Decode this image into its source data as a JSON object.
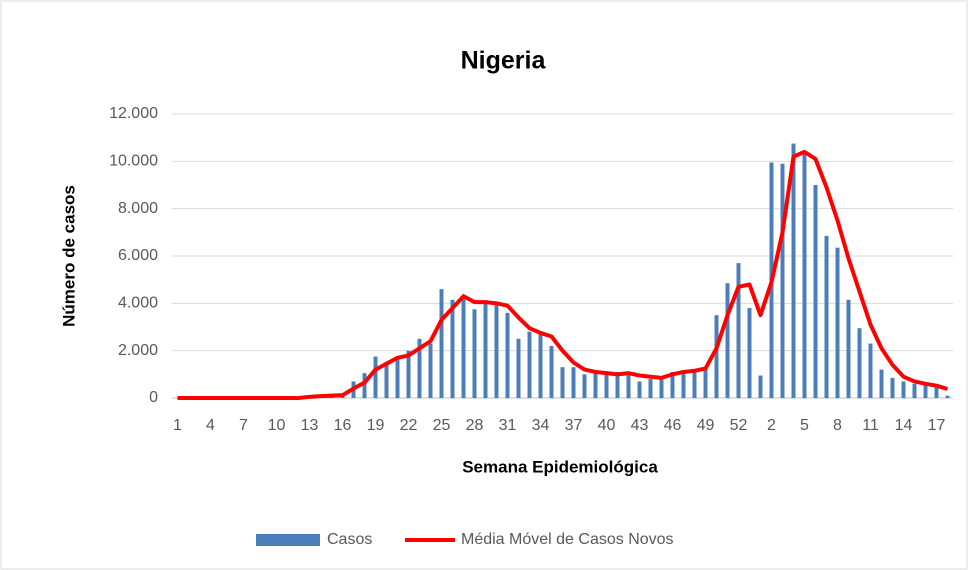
{
  "chart_data": {
    "type": "bar",
    "title": "Nigeria",
    "x_label": "Semana Epidemiológica",
    "y_label": "Número de casos",
    "categories": [
      "1",
      null,
      null,
      "4",
      null,
      null,
      "7",
      null,
      null,
      "10",
      null,
      null,
      "13",
      null,
      null,
      "16",
      null,
      null,
      "19",
      null,
      null,
      "22",
      null,
      null,
      "25",
      null,
      null,
      "28",
      null,
      null,
      "31",
      null,
      null,
      "34",
      null,
      null,
      "37",
      null,
      null,
      "40",
      null,
      null,
      "43",
      null,
      null,
      "46",
      null,
      null,
      "49",
      null,
      null,
      "52",
      null,
      null,
      "2",
      null,
      null,
      "5",
      null,
      null,
      "8",
      null,
      null,
      "11",
      null,
      null,
      "14",
      null,
      null,
      "17",
      null
    ],
    "series": [
      {
        "name": "Casos",
        "type": "bar",
        "color": "#4a7ebb",
        "values": [
          0,
          0,
          0,
          0,
          0,
          0,
          0,
          0,
          0,
          0,
          0,
          0,
          50,
          80,
          100,
          150,
          700,
          1050,
          1750,
          1500,
          1700,
          2000,
          2500,
          2300,
          4600,
          4150,
          4300,
          3750,
          4100,
          4000,
          3600,
          2500,
          2800,
          2700,
          2200,
          1300,
          1300,
          1000,
          1100,
          1000,
          1100,
          1100,
          700,
          800,
          900,
          1100,
          1100,
          1200,
          1300,
          3500,
          4850,
          5700,
          3800,
          950,
          9950,
          9900,
          10750,
          10400,
          9000,
          6850,
          6350,
          4150,
          2950,
          2300,
          1200,
          850,
          700,
          600,
          550,
          500,
          100
        ]
      },
      {
        "name": "Média Móvel de Casos Novos",
        "type": "line",
        "color": "#ff0000",
        "values": [
          0,
          0,
          0,
          0,
          0,
          0,
          0,
          0,
          0,
          0,
          0,
          0,
          50,
          80,
          100,
          120,
          400,
          650,
          1200,
          1450,
          1700,
          1800,
          2100,
          2400,
          3300,
          3800,
          4300,
          4050,
          4050,
          4000,
          3900,
          3400,
          2950,
          2750,
          2600,
          2000,
          1500,
          1200,
          1100,
          1050,
          1000,
          1050,
          950,
          900,
          850,
          1000,
          1100,
          1150,
          1250,
          2100,
          3500,
          4700,
          4800,
          3500,
          4900,
          7000,
          10200,
          10400,
          10100,
          8900,
          7500,
          5900,
          4500,
          3100,
          2100,
          1400,
          900,
          700,
          600,
          520,
          380
        ]
      }
    ],
    "ylim": [
      0,
      12000
    ],
    "yticks": [
      0,
      {
        "value": 2000,
        "label": "2.000"
      },
      {
        "value": 4000,
        "label": "4.000"
      },
      {
        "value": 6000,
        "label": "6.000"
      },
      {
        "value": 8000,
        "label": "8.000"
      },
      {
        "value": 10000,
        "label": "10.000"
      },
      {
        "value": 12000,
        "label": "12.000"
      }
    ],
    "grid": true,
    "legend": "bottom"
  }
}
